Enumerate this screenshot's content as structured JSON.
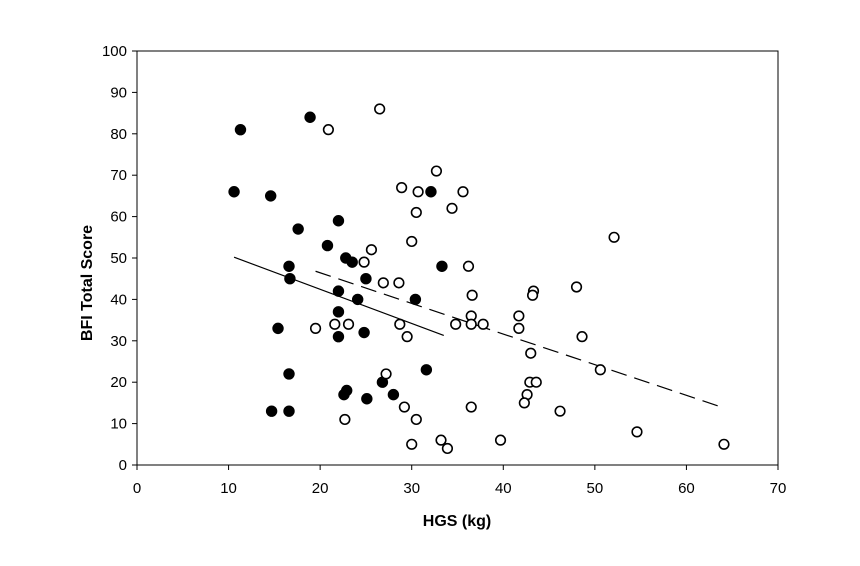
{
  "chart_data": {
    "type": "scatter",
    "xlabel": "HGS (kg)",
    "ylabel": "BFI Total Score",
    "xlim": [
      0,
      70
    ],
    "ylim": [
      0,
      100
    ],
    "xticks": [
      "0",
      "10",
      "20",
      "30",
      "40",
      "50",
      "60",
      "70"
    ],
    "yticks": [
      "0",
      "10",
      "20",
      "30",
      "40",
      "50",
      "60",
      "70",
      "80",
      "90",
      "100"
    ],
    "grid": false,
    "legend": "none",
    "series": [
      {
        "marker": "filled-circle",
        "color": "#000000",
        "points": [
          [
            11.3,
            81
          ],
          [
            10.6,
            66
          ],
          [
            14.6,
            65
          ],
          [
            17.6,
            57
          ],
          [
            16.6,
            48
          ],
          [
            16.7,
            45
          ],
          [
            15.4,
            33
          ],
          [
            16.6,
            22
          ],
          [
            14.7,
            13
          ],
          [
            16.6,
            13
          ],
          [
            18.9,
            84
          ],
          [
            22.0,
            59
          ],
          [
            20.8,
            53
          ],
          [
            22.8,
            50
          ],
          [
            23.5,
            49
          ],
          [
            25.0,
            45
          ],
          [
            22.0,
            42
          ],
          [
            24.1,
            40
          ],
          [
            22.0,
            37
          ],
          [
            24.8,
            32
          ],
          [
            22.0,
            31
          ],
          [
            22.9,
            18
          ],
          [
            22.6,
            17
          ],
          [
            25.1,
            16
          ],
          [
            26.8,
            20
          ],
          [
            28.0,
            17
          ],
          [
            32.1,
            66
          ],
          [
            33.3,
            48
          ],
          [
            30.4,
            40
          ],
          [
            31.6,
            23
          ]
        ]
      },
      {
        "marker": "open-circle",
        "color": "#000000",
        "points": [
          [
            26.5,
            86
          ],
          [
            20.9,
            81
          ],
          [
            32.7,
            71
          ],
          [
            28.9,
            67
          ],
          [
            30.7,
            66
          ],
          [
            35.6,
            66
          ],
          [
            34.4,
            62
          ],
          [
            30.5,
            61
          ],
          [
            52.1,
            55
          ],
          [
            30.0,
            54
          ],
          [
            25.6,
            52
          ],
          [
            24.8,
            49
          ],
          [
            36.2,
            48
          ],
          [
            26.9,
            44
          ],
          [
            28.6,
            44
          ],
          [
            48.0,
            43
          ],
          [
            43.3,
            42
          ],
          [
            43.2,
            41
          ],
          [
            36.6,
            41
          ],
          [
            41.7,
            36
          ],
          [
            36.5,
            36
          ],
          [
            19.5,
            33
          ],
          [
            21.6,
            34
          ],
          [
            23.1,
            34
          ],
          [
            28.7,
            34
          ],
          [
            34.8,
            34
          ],
          [
            36.5,
            34
          ],
          [
            37.8,
            34
          ],
          [
            41.7,
            33
          ],
          [
            29.5,
            31
          ],
          [
            48.6,
            31
          ],
          [
            43.0,
            27
          ],
          [
            50.6,
            23
          ],
          [
            27.2,
            22
          ],
          [
            42.9,
            20
          ],
          [
            43.6,
            20
          ],
          [
            42.6,
            17
          ],
          [
            42.3,
            15
          ],
          [
            29.2,
            14
          ],
          [
            36.5,
            14
          ],
          [
            46.2,
            13
          ],
          [
            22.7,
            11
          ],
          [
            30.5,
            11
          ],
          [
            54.6,
            8
          ],
          [
            33.2,
            6
          ],
          [
            39.7,
            6
          ],
          [
            30.0,
            5
          ],
          [
            64.1,
            5
          ],
          [
            33.9,
            4
          ]
        ]
      }
    ],
    "trendlines": [
      {
        "style": "solid",
        "from": [
          10.6,
          50.2
        ],
        "to": [
          33.5,
          31.3
        ]
      },
      {
        "style": "dashed",
        "from": [
          19.5,
          46.8
        ],
        "to": [
          64.1,
          13.8
        ]
      }
    ]
  }
}
